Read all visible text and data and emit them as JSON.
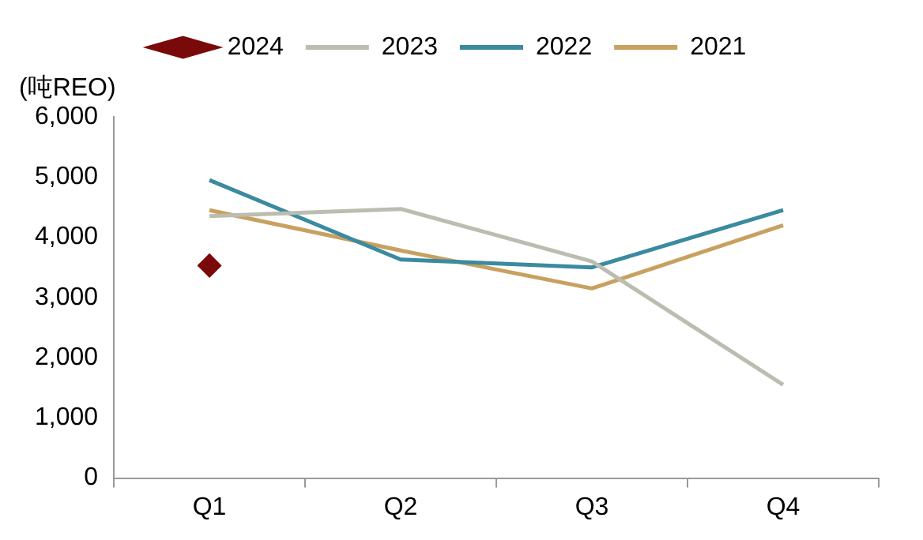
{
  "chart_data": {
    "type": "line",
    "ylabel": "(吨REO)",
    "categories": [
      "Q1",
      "Q2",
      "Q3",
      "Q4"
    ],
    "series": [
      {
        "name": "2024",
        "color": "#7a0a0a",
        "marker": "diamond",
        "values": [
          3530,
          null,
          null,
          null
        ]
      },
      {
        "name": "2023",
        "color": "#bcbcb0",
        "marker": "none",
        "values": [
          4350,
          4470,
          3600,
          1550
        ]
      },
      {
        "name": "2022",
        "color": "#3a8aa0",
        "marker": "none",
        "values": [
          4950,
          3630,
          3500,
          4450
        ]
      },
      {
        "name": "2021",
        "color": "#c8a060",
        "marker": "none",
        "values": [
          4450,
          3780,
          3150,
          4200
        ]
      }
    ],
    "ylim": [
      0,
      6000
    ],
    "yticks": [
      0,
      {
        "value": 1000,
        "label": "1,000"
      },
      {
        "value": 2000,
        "label": "2,000"
      },
      {
        "value": 3000,
        "label": "3,000"
      },
      {
        "value": 4000,
        "label": "4,000"
      },
      {
        "value": 5000,
        "label": "5,000"
      },
      {
        "value": 6000,
        "label": "6,000"
      }
    ],
    "grid": false,
    "legend": "top",
    "line_style": "solid"
  }
}
